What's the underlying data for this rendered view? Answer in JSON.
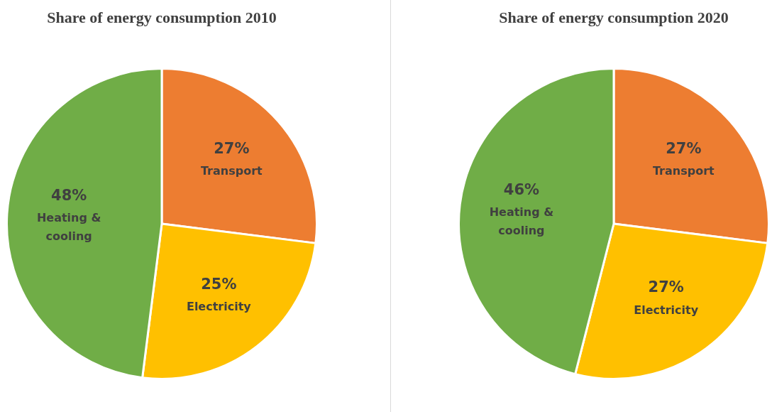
{
  "chart_data": [
    {
      "type": "pie",
      "title": "Share of energy consumption 2010",
      "categories": [
        "Transport",
        "Electricity",
        "Heating & cooling"
      ],
      "values": [
        27,
        25,
        48
      ],
      "value_labels": [
        "27%",
        "25%",
        "48%"
      ],
      "colors": [
        "#ed7d31",
        "#ffc000",
        "#70ad47"
      ]
    },
    {
      "type": "pie",
      "title": "Share of energy consumption 2020",
      "categories": [
        "Transport",
        "Electricity",
        "Heating & cooling"
      ],
      "values": [
        27,
        27,
        46
      ],
      "value_labels": [
        "27%",
        "27%",
        "46%"
      ],
      "colors": [
        "#ed7d31",
        "#ffc000",
        "#70ad47"
      ]
    }
  ]
}
